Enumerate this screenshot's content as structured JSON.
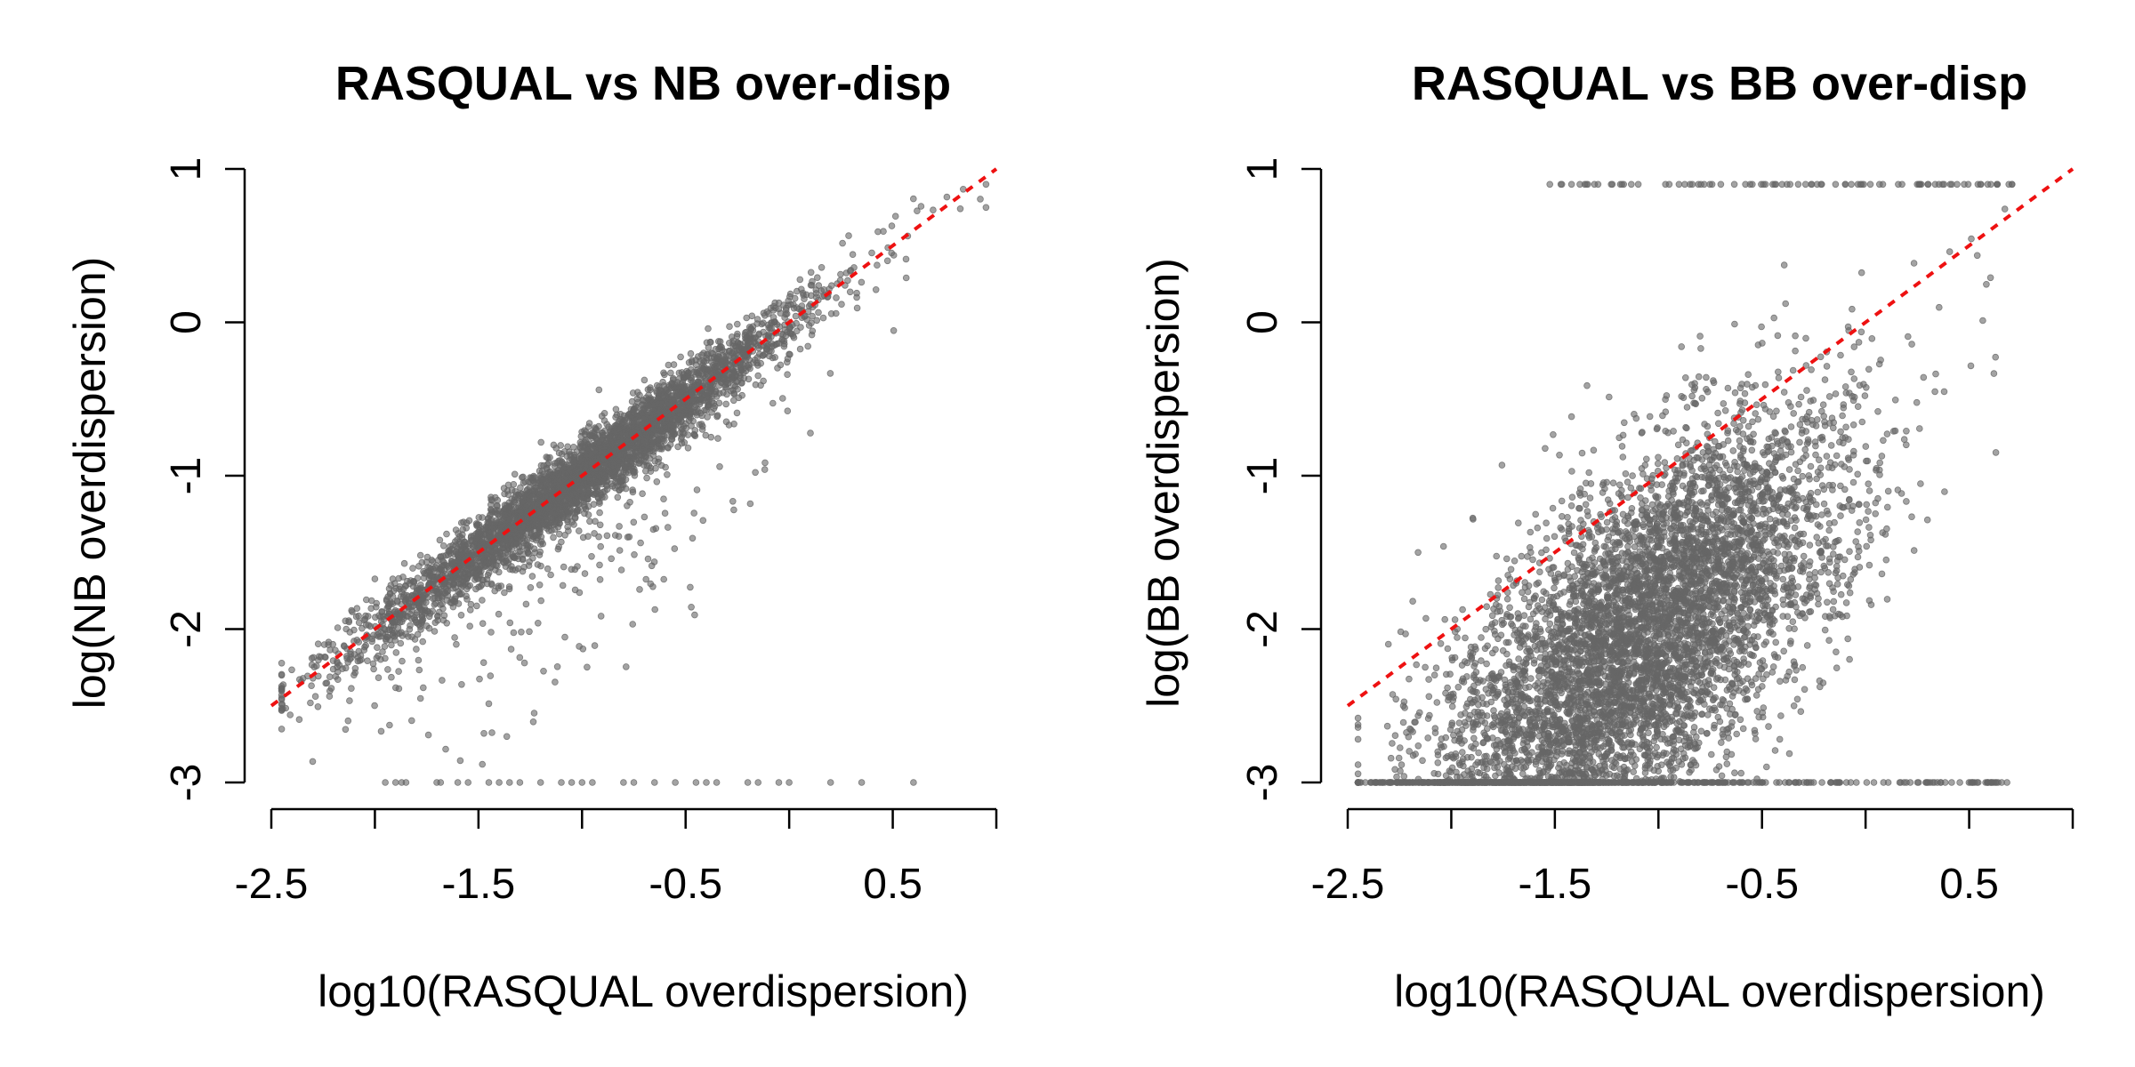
{
  "chart_data": [
    {
      "type": "scatter",
      "title": "RASQUAL vs NB over-disp",
      "xlabel": "log10(RASQUAL overdispersion)",
      "ylabel": "log(NB overdispersion)",
      "xlim": [
        -2.5,
        1.0
      ],
      "ylim": [
        -3,
        1
      ],
      "xticks": [
        "-2.5",
        "-1.5",
        "-0.5",
        "0.5"
      ],
      "xtick_values": [
        -2.5,
        -2.0,
        -1.5,
        -1.0,
        -0.5,
        0.0,
        0.5,
        1.0
      ],
      "yticks": [
        "-3",
        "-2",
        "-1",
        "0",
        "1"
      ],
      "ytick_values": [
        -3,
        -2,
        -1,
        0,
        1
      ],
      "point_color": "#666666",
      "reference_line": {
        "slope": 1,
        "intercept": 0,
        "color": "#ee1111",
        "style": "dashed"
      },
      "cloud": {
        "x_center": -1.0,
        "x_sd": 0.55,
        "y_relation": "y = x",
        "y_noise_sd": 0.12
      },
      "floor_value": -3,
      "ceiling_value": 0.9
    },
    {
      "type": "scatter",
      "title": "RASQUAL vs BB over-disp",
      "xlabel": "log10(RASQUAL overdispersion)",
      "ylabel": "log(BB overdispersion)",
      "xlim": [
        -2.5,
        1.0
      ],
      "ylim": [
        -3,
        1
      ],
      "xticks": [
        "-2.5",
        "-1.5",
        "-0.5",
        "0.5"
      ],
      "xtick_values": [
        -2.5,
        -2.0,
        -1.5,
        -1.0,
        -0.5,
        0.0,
        0.5,
        1.0
      ],
      "yticks": [
        "-3",
        "-2",
        "-1",
        "0",
        "1"
      ],
      "ytick_values": [
        -3,
        -2,
        -1,
        0,
        1
      ],
      "point_color": "#666666",
      "reference_line": {
        "slope": 1,
        "intercept": 0,
        "color": "#ee1111",
        "style": "dashed"
      },
      "cloud": {
        "x_center": -1.1,
        "x_sd": 0.5,
        "y_relation": "y = x - 1.0",
        "y_noise_sd": 0.55
      },
      "floor_value": -3,
      "ceiling_value": 0.9
    }
  ]
}
